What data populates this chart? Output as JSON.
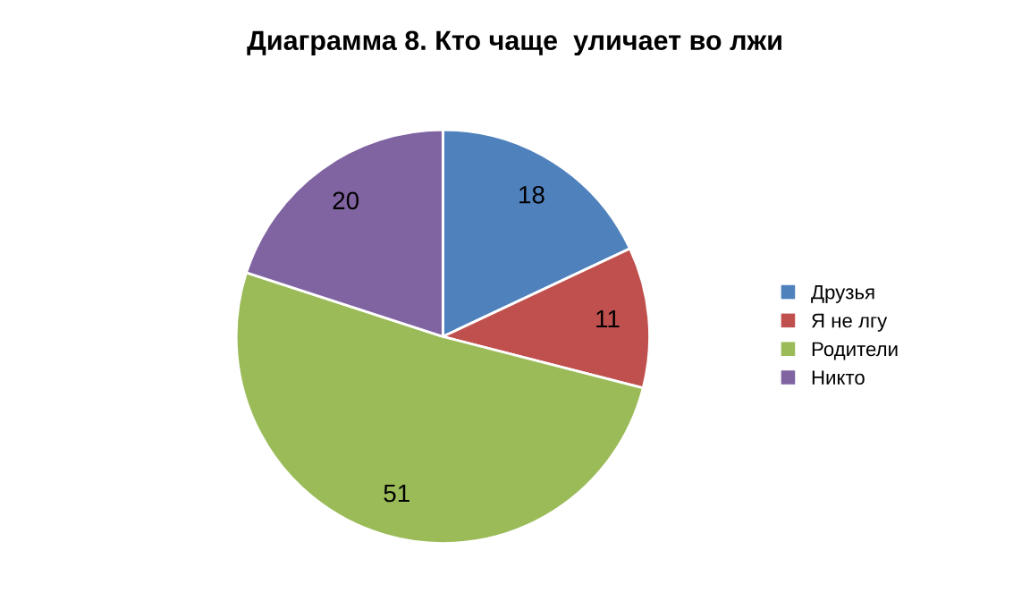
{
  "chart_data": {
    "type": "pie",
    "title": "Диаграмма 8. Кто чаще  уличает во лжи",
    "categories": [
      "Друзья",
      "Я не лгу",
      "Родители",
      "Никто"
    ],
    "values": [
      18,
      11,
      51,
      20
    ],
    "colors": [
      "#4f81bd",
      "#c0504d",
      "#9bbb59",
      "#8064a2"
    ],
    "data_labels": true,
    "legend": "right"
  }
}
